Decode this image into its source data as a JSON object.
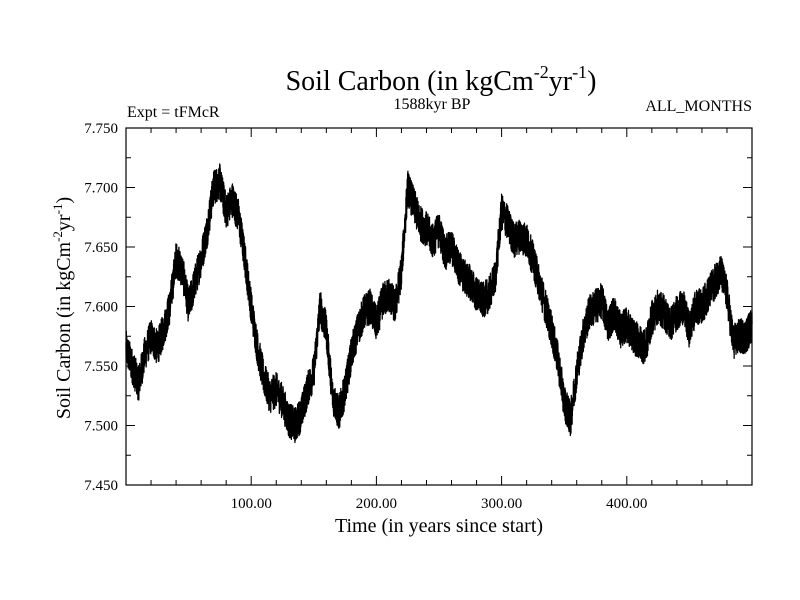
{
  "chart_data": {
    "type": "line",
    "title": {
      "main": "Soil Carbon (in kgCm",
      "sup1": "-2",
      "mid": "yr",
      "sup2": "-1",
      "end": ")"
    },
    "subtitle_left": "Expt = tFMcR",
    "subtitle_center": "1588kyr BP",
    "subtitle_right": "ALL_MONTHS",
    "xlabel": "Time (in years since start)",
    "ylabel": {
      "main": "Soil Carbon (in kgCm",
      "sup1": "-2",
      "mid": "yr",
      "sup2": "-1",
      "end": ")"
    },
    "xlim": [
      0,
      500
    ],
    "ylim": [
      7.45,
      7.75
    ],
    "x_ticks": [
      100,
      200,
      300,
      400
    ],
    "x_tick_labels": [
      "100.00",
      "200.00",
      "300.00",
      "400.00"
    ],
    "y_ticks": [
      7.45,
      7.5,
      7.55,
      7.6,
      7.65,
      7.7,
      7.75
    ],
    "y_tick_labels": [
      "7.450",
      "7.500",
      "7.550",
      "7.600",
      "7.650",
      "7.700",
      "7.750"
    ],
    "series": [
      {
        "name": "Soil Carbon",
        "color": "#000000",
        "x": [
          0,
          5,
          10,
          15,
          20,
          25,
          30,
          35,
          40,
          45,
          50,
          55,
          60,
          65,
          70,
          75,
          80,
          85,
          90,
          95,
          100,
          105,
          110,
          115,
          120,
          125,
          130,
          135,
          140,
          145,
          150,
          155,
          160,
          165,
          170,
          175,
          180,
          185,
          190,
          195,
          200,
          205,
          210,
          215,
          220,
          225,
          230,
          235,
          240,
          245,
          250,
          255,
          260,
          265,
          270,
          275,
          280,
          285,
          290,
          295,
          300,
          305,
          310,
          315,
          320,
          325,
          330,
          335,
          340,
          345,
          350,
          355,
          360,
          365,
          370,
          375,
          380,
          385,
          390,
          395,
          400,
          405,
          410,
          415,
          420,
          425,
          430,
          435,
          440,
          445,
          450,
          455,
          460,
          465,
          470,
          475,
          480,
          485,
          490,
          495,
          500
        ],
        "y": [
          7.565,
          7.55,
          7.535,
          7.56,
          7.575,
          7.565,
          7.58,
          7.6,
          7.64,
          7.63,
          7.6,
          7.62,
          7.64,
          7.665,
          7.7,
          7.705,
          7.68,
          7.69,
          7.675,
          7.64,
          7.6,
          7.565,
          7.54,
          7.525,
          7.53,
          7.52,
          7.505,
          7.5,
          7.51,
          7.53,
          7.545,
          7.6,
          7.58,
          7.525,
          7.51,
          7.53,
          7.56,
          7.58,
          7.595,
          7.6,
          7.585,
          7.605,
          7.61,
          7.6,
          7.63,
          7.7,
          7.685,
          7.67,
          7.665,
          7.655,
          7.665,
          7.645,
          7.65,
          7.635,
          7.625,
          7.62,
          7.61,
          7.605,
          7.61,
          7.625,
          7.68,
          7.67,
          7.655,
          7.66,
          7.655,
          7.64,
          7.62,
          7.6,
          7.58,
          7.555,
          7.52,
          7.505,
          7.545,
          7.575,
          7.595,
          7.6,
          7.605,
          7.585,
          7.595,
          7.58,
          7.585,
          7.575,
          7.57,
          7.565,
          7.59,
          7.6,
          7.595,
          7.585,
          7.595,
          7.6,
          7.58,
          7.6,
          7.6,
          7.61,
          7.62,
          7.63,
          7.61,
          7.57,
          7.575,
          7.575,
          7.585
        ]
      }
    ]
  }
}
